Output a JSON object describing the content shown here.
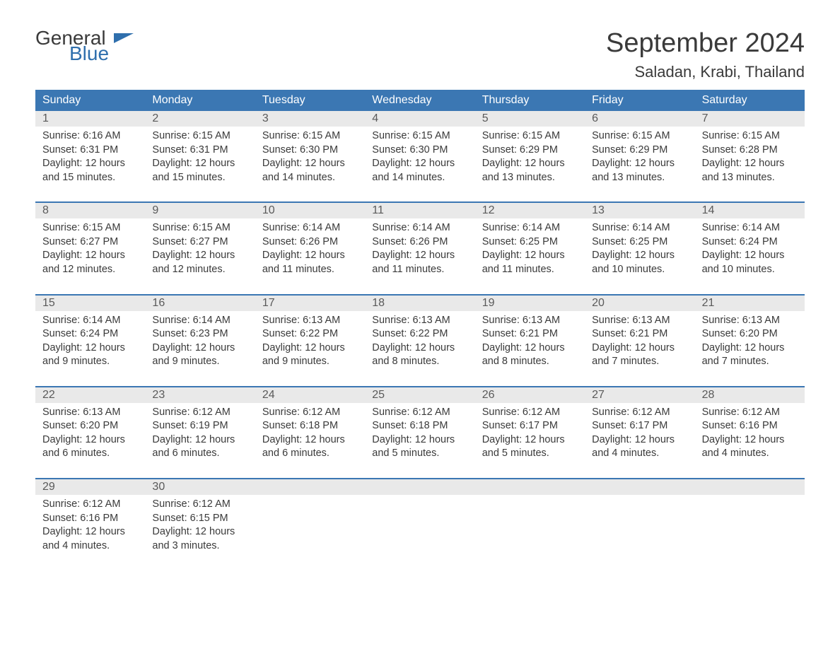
{
  "logo": {
    "line1": "General",
    "line2": "Blue"
  },
  "title": "September 2024",
  "location": "Saladan, Krabi, Thailand",
  "colors": {
    "header_bg": "#3b77b3",
    "header_text": "#ffffff",
    "daynum_bg": "#e9e9e9",
    "week_border": "#3b77b3",
    "body_text": "#3a3a3a",
    "logo_blue": "#2f6fad",
    "page_bg": "#ffffff"
  },
  "day_of_week_labels": [
    "Sunday",
    "Monday",
    "Tuesday",
    "Wednesday",
    "Thursday",
    "Friday",
    "Saturday"
  ],
  "weeks": [
    [
      {
        "d": "1",
        "sr": "Sunrise: 6:16 AM",
        "ss": "Sunset: 6:31 PM",
        "dl1": "Daylight: 12 hours",
        "dl2": "and 15 minutes."
      },
      {
        "d": "2",
        "sr": "Sunrise: 6:15 AM",
        "ss": "Sunset: 6:31 PM",
        "dl1": "Daylight: 12 hours",
        "dl2": "and 15 minutes."
      },
      {
        "d": "3",
        "sr": "Sunrise: 6:15 AM",
        "ss": "Sunset: 6:30 PM",
        "dl1": "Daylight: 12 hours",
        "dl2": "and 14 minutes."
      },
      {
        "d": "4",
        "sr": "Sunrise: 6:15 AM",
        "ss": "Sunset: 6:30 PM",
        "dl1": "Daylight: 12 hours",
        "dl2": "and 14 minutes."
      },
      {
        "d": "5",
        "sr": "Sunrise: 6:15 AM",
        "ss": "Sunset: 6:29 PM",
        "dl1": "Daylight: 12 hours",
        "dl2": "and 13 minutes."
      },
      {
        "d": "6",
        "sr": "Sunrise: 6:15 AM",
        "ss": "Sunset: 6:29 PM",
        "dl1": "Daylight: 12 hours",
        "dl2": "and 13 minutes."
      },
      {
        "d": "7",
        "sr": "Sunrise: 6:15 AM",
        "ss": "Sunset: 6:28 PM",
        "dl1": "Daylight: 12 hours",
        "dl2": "and 13 minutes."
      }
    ],
    [
      {
        "d": "8",
        "sr": "Sunrise: 6:15 AM",
        "ss": "Sunset: 6:27 PM",
        "dl1": "Daylight: 12 hours",
        "dl2": "and 12 minutes."
      },
      {
        "d": "9",
        "sr": "Sunrise: 6:15 AM",
        "ss": "Sunset: 6:27 PM",
        "dl1": "Daylight: 12 hours",
        "dl2": "and 12 minutes."
      },
      {
        "d": "10",
        "sr": "Sunrise: 6:14 AM",
        "ss": "Sunset: 6:26 PM",
        "dl1": "Daylight: 12 hours",
        "dl2": "and 11 minutes."
      },
      {
        "d": "11",
        "sr": "Sunrise: 6:14 AM",
        "ss": "Sunset: 6:26 PM",
        "dl1": "Daylight: 12 hours",
        "dl2": "and 11 minutes."
      },
      {
        "d": "12",
        "sr": "Sunrise: 6:14 AM",
        "ss": "Sunset: 6:25 PM",
        "dl1": "Daylight: 12 hours",
        "dl2": "and 11 minutes."
      },
      {
        "d": "13",
        "sr": "Sunrise: 6:14 AM",
        "ss": "Sunset: 6:25 PM",
        "dl1": "Daylight: 12 hours",
        "dl2": "and 10 minutes."
      },
      {
        "d": "14",
        "sr": "Sunrise: 6:14 AM",
        "ss": "Sunset: 6:24 PM",
        "dl1": "Daylight: 12 hours",
        "dl2": "and 10 minutes."
      }
    ],
    [
      {
        "d": "15",
        "sr": "Sunrise: 6:14 AM",
        "ss": "Sunset: 6:24 PM",
        "dl1": "Daylight: 12 hours",
        "dl2": "and 9 minutes."
      },
      {
        "d": "16",
        "sr": "Sunrise: 6:14 AM",
        "ss": "Sunset: 6:23 PM",
        "dl1": "Daylight: 12 hours",
        "dl2": "and 9 minutes."
      },
      {
        "d": "17",
        "sr": "Sunrise: 6:13 AM",
        "ss": "Sunset: 6:22 PM",
        "dl1": "Daylight: 12 hours",
        "dl2": "and 9 minutes."
      },
      {
        "d": "18",
        "sr": "Sunrise: 6:13 AM",
        "ss": "Sunset: 6:22 PM",
        "dl1": "Daylight: 12 hours",
        "dl2": "and 8 minutes."
      },
      {
        "d": "19",
        "sr": "Sunrise: 6:13 AM",
        "ss": "Sunset: 6:21 PM",
        "dl1": "Daylight: 12 hours",
        "dl2": "and 8 minutes."
      },
      {
        "d": "20",
        "sr": "Sunrise: 6:13 AM",
        "ss": "Sunset: 6:21 PM",
        "dl1": "Daylight: 12 hours",
        "dl2": "and 7 minutes."
      },
      {
        "d": "21",
        "sr": "Sunrise: 6:13 AM",
        "ss": "Sunset: 6:20 PM",
        "dl1": "Daylight: 12 hours",
        "dl2": "and 7 minutes."
      }
    ],
    [
      {
        "d": "22",
        "sr": "Sunrise: 6:13 AM",
        "ss": "Sunset: 6:20 PM",
        "dl1": "Daylight: 12 hours",
        "dl2": "and 6 minutes."
      },
      {
        "d": "23",
        "sr": "Sunrise: 6:12 AM",
        "ss": "Sunset: 6:19 PM",
        "dl1": "Daylight: 12 hours",
        "dl2": "and 6 minutes."
      },
      {
        "d": "24",
        "sr": "Sunrise: 6:12 AM",
        "ss": "Sunset: 6:18 PM",
        "dl1": "Daylight: 12 hours",
        "dl2": "and 6 minutes."
      },
      {
        "d": "25",
        "sr": "Sunrise: 6:12 AM",
        "ss": "Sunset: 6:18 PM",
        "dl1": "Daylight: 12 hours",
        "dl2": "and 5 minutes."
      },
      {
        "d": "26",
        "sr": "Sunrise: 6:12 AM",
        "ss": "Sunset: 6:17 PM",
        "dl1": "Daylight: 12 hours",
        "dl2": "and 5 minutes."
      },
      {
        "d": "27",
        "sr": "Sunrise: 6:12 AM",
        "ss": "Sunset: 6:17 PM",
        "dl1": "Daylight: 12 hours",
        "dl2": "and 4 minutes."
      },
      {
        "d": "28",
        "sr": "Sunrise: 6:12 AM",
        "ss": "Sunset: 6:16 PM",
        "dl1": "Daylight: 12 hours",
        "dl2": "and 4 minutes."
      }
    ],
    [
      {
        "d": "29",
        "sr": "Sunrise: 6:12 AM",
        "ss": "Sunset: 6:16 PM",
        "dl1": "Daylight: 12 hours",
        "dl2": "and 4 minutes."
      },
      {
        "d": "30",
        "sr": "Sunrise: 6:12 AM",
        "ss": "Sunset: 6:15 PM",
        "dl1": "Daylight: 12 hours",
        "dl2": "and 3 minutes."
      },
      {
        "d": "",
        "sr": "",
        "ss": "",
        "dl1": "",
        "dl2": ""
      },
      {
        "d": "",
        "sr": "",
        "ss": "",
        "dl1": "",
        "dl2": ""
      },
      {
        "d": "",
        "sr": "",
        "ss": "",
        "dl1": "",
        "dl2": ""
      },
      {
        "d": "",
        "sr": "",
        "ss": "",
        "dl1": "",
        "dl2": ""
      },
      {
        "d": "",
        "sr": "",
        "ss": "",
        "dl1": "",
        "dl2": ""
      }
    ]
  ]
}
